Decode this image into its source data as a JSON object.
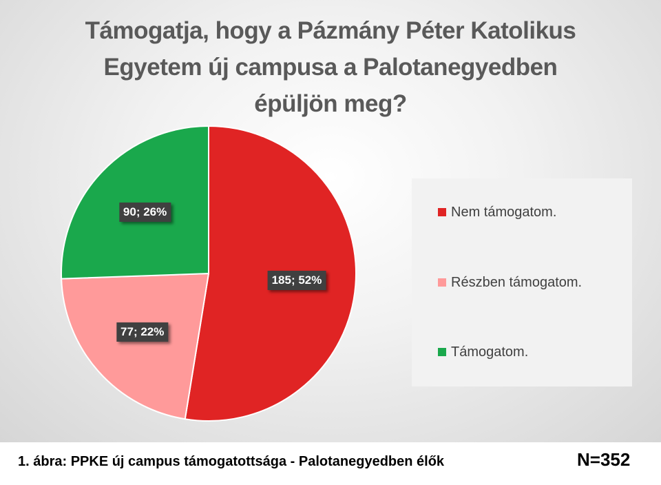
{
  "chart_data": {
    "type": "pie",
    "title": "Támogatja, hogy a Pázmány Péter Katolikus Egyetem új campusa a Palotanegyedben épüljön meg?",
    "title_lines": [
      "Támogatja, hogy a Pázmány Péter Katolikus",
      "Egyetem új campusa a Palotanegyedben",
      "épüljön meg?"
    ],
    "categories": [
      "Nem támogatom.",
      "Részben támogatom.",
      "Támogatom."
    ],
    "values": [
      185,
      77,
      90
    ],
    "percents": [
      52,
      22,
      26
    ],
    "labels": [
      "185; 52%",
      "77; 22%",
      "90; 26%"
    ],
    "colors": [
      "#e02424",
      "#ff9a9a",
      "#1aa84c"
    ],
    "legend_position": "right",
    "grid": false
  },
  "footer": {
    "caption": "1. ábra: PPKE új campus támogatottsága - Palotanegyedben élők",
    "n_label": "N=352"
  }
}
